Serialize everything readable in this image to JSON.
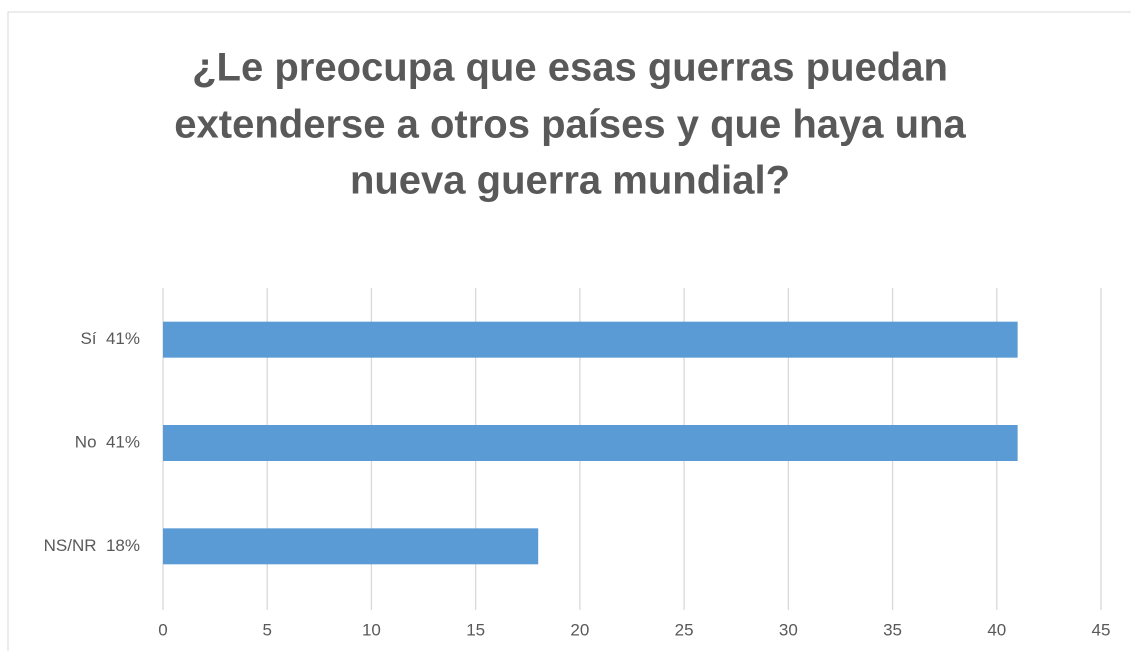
{
  "chart_data": {
    "type": "bar",
    "orientation": "horizontal",
    "title": [
      "¿Le preocupa que esas guerras puedan",
      "extenderse a otros países y que haya una",
      "nueva guerra mundial?"
    ],
    "categories": [
      "Sí  41%",
      "No  41%",
      "NS/NR  18%"
    ],
    "values": [
      41,
      41,
      18
    ],
    "color": "#5b9bd5",
    "xlim": [
      0,
      45
    ],
    "xticks": [
      0,
      5,
      10,
      15,
      20,
      25,
      30,
      35,
      40,
      45
    ],
    "grid": true
  }
}
